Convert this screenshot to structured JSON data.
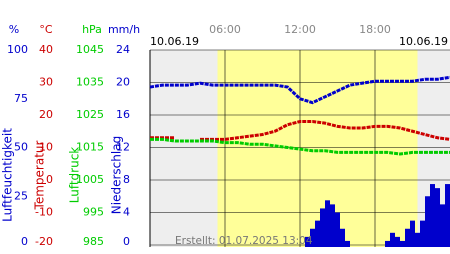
{
  "chart_data": {
    "type": "line",
    "date_left": "10.06.19",
    "date_right": "10.06.19",
    "created": "Erstellt: 01.07.2025 13:04",
    "xlim": [
      0,
      24
    ],
    "xticks": [
      {
        "value": 6,
        "label": "06:00"
      },
      {
        "value": 12,
        "label": "12:00"
      },
      {
        "value": 18,
        "label": "18:00"
      }
    ],
    "daylight": [
      5.4,
      21.4
    ],
    "axes": [
      {
        "unit": "%",
        "name": "Luftfeuchtigkeit",
        "color": "#0000cc",
        "ylim": [
          0,
          100
        ],
        "yticks": [
          0,
          25,
          50,
          75,
          100
        ]
      },
      {
        "unit": "°C",
        "name": "Temperatur",
        "color": "#cc0000",
        "ylim": [
          -20,
          40
        ],
        "yticks": [
          -20,
          -10,
          0,
          10,
          20,
          30,
          40
        ]
      },
      {
        "unit": "hPa",
        "name": "Luftdruck",
        "color": "#00cc00",
        "ylim": [
          985,
          1045
        ],
        "yticks": [
          985,
          995,
          1005,
          1015,
          1025,
          1035,
          1045
        ]
      },
      {
        "unit": "mm/h",
        "name": "Niederschlag",
        "color": "#0000cc",
        "ylim": [
          0,
          24
        ],
        "yticks": [
          0,
          4,
          8,
          12,
          16,
          20,
          24
        ]
      }
    ],
    "x": [
      0,
      1,
      2,
      3,
      4,
      5,
      6,
      7,
      8,
      9,
      10,
      11,
      12,
      13,
      14,
      15,
      16,
      17,
      18,
      19,
      20,
      21,
      22,
      23,
      24
    ],
    "series": [
      {
        "name": "Luftfeuchtigkeit",
        "axis": 0,
        "color": "#0000cc",
        "values": [
          81,
          82,
          82,
          82,
          83,
          82,
          82,
          82,
          82,
          82,
          82,
          81,
          75,
          73,
          76,
          79,
          82,
          83,
          84,
          84,
          84,
          84,
          85,
          85,
          86
        ]
      },
      {
        "name": "Temperatur",
        "axis": 1,
        "color": "#cc0000",
        "values": [
          13,
          13,
          13,
          null,
          12.5,
          12.5,
          12.5,
          13,
          13.5,
          14,
          15,
          17,
          18,
          18,
          17.5,
          16.5,
          16,
          16,
          16.5,
          16.5,
          16,
          15,
          14,
          13,
          12.5
        ]
      },
      {
        "name": "Luftdruck",
        "axis": 2,
        "color": "#00cc00",
        "values": [
          1017.5,
          1017.5,
          1017,
          1017,
          1017,
          1017,
          1016.5,
          1016.5,
          1016,
          1016,
          1015.5,
          1015,
          1014.5,
          1014,
          1014,
          1013.5,
          1013.5,
          1013.5,
          1013.5,
          1013.5,
          1013,
          1013.5,
          1013.5,
          1013.5,
          1013.5
        ]
      }
    ],
    "precip": {
      "axis": 3,
      "color": "#0000cc",
      "x": [
        12.6,
        13,
        13.4,
        13.8,
        14.2,
        14.6,
        15,
        15.4,
        15.8,
        19,
        19.4,
        19.8,
        20.2,
        20.6,
        21,
        21.4,
        21.8,
        22.2,
        22.6,
        23,
        23.4,
        23.8
      ],
      "values": [
        1,
        2,
        3,
        4.5,
        5.5,
        5,
        4,
        2,
        0.5,
        0.5,
        1.5,
        1,
        0.5,
        2,
        3,
        1.5,
        3,
        6,
        7.5,
        7,
        5,
        7.5
      ]
    }
  }
}
